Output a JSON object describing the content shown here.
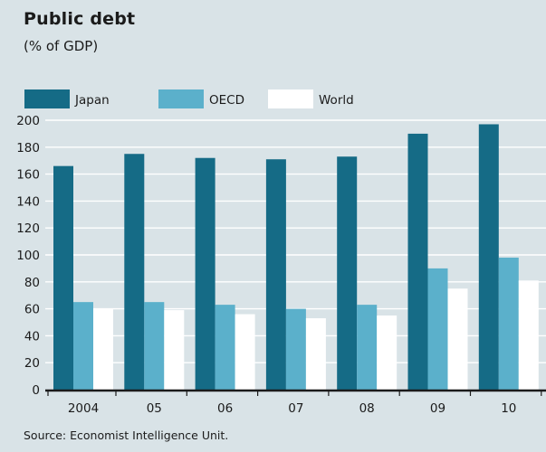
{
  "chart_data": {
    "type": "bar",
    "title": "Public debt",
    "subtitle": "(% of GDP)",
    "source": "Source: Economist Intelligence Unit.",
    "categories": [
      "2004",
      "05",
      "06",
      "07",
      "08",
      "09",
      "10"
    ],
    "series": [
      {
        "name": "Japan",
        "color": "#156b86",
        "values": [
          166,
          175,
          172,
          171,
          173,
          190,
          197
        ]
      },
      {
        "name": "OECD",
        "color": "#5bb0cb",
        "values": [
          65,
          65,
          63,
          60,
          63,
          90,
          98
        ]
      },
      {
        "name": "World",
        "color": "#ffffff",
        "values": [
          60,
          59,
          56,
          53,
          55,
          75,
          81
        ]
      }
    ],
    "ylim": [
      0,
      200
    ],
    "yticks": [
      0,
      20,
      40,
      60,
      80,
      100,
      120,
      140,
      160,
      180,
      200
    ],
    "grid": true,
    "legend_position": "top-left"
  }
}
